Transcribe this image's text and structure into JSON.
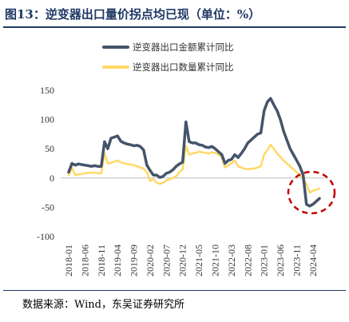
{
  "header": {
    "title": "图13：逆变器出口量价拐点均已现（单位：%）"
  },
  "footer": {
    "source": "数据来源：Wind，东吴证券研究所"
  },
  "chart_data": {
    "type": "line",
    "title": "",
    "xlabel": "",
    "ylabel": "",
    "ylim": [
      -100,
      150
    ],
    "yticks": [
      150,
      100,
      50,
      0,
      -50,
      -100
    ],
    "xtick_labels": [
      "2018-01",
      "2018-06",
      "2018-11",
      "2019-04",
      "2019-09",
      "2020-02",
      "2020-07",
      "2020-12",
      "2021-05",
      "2021-10",
      "2022-03",
      "2022-08",
      "2023-01",
      "2023-06",
      "2023-11",
      "2024-04"
    ],
    "legend_position": "top-center",
    "annotation": "dashed red ellipse around latest values",
    "x": [
      "2018-01",
      "2018-02",
      "2018-03",
      "2018-04",
      "2018-05",
      "2018-06",
      "2018-07",
      "2018-08",
      "2018-09",
      "2018-10",
      "2018-11",
      "2018-12",
      "2019-01",
      "2019-02",
      "2019-03",
      "2019-04",
      "2019-05",
      "2019-06",
      "2019-07",
      "2019-08",
      "2019-09",
      "2019-10",
      "2019-11",
      "2019-12",
      "2020-01",
      "2020-02",
      "2020-03",
      "2020-04",
      "2020-05",
      "2020-06",
      "2020-07",
      "2020-08",
      "2020-09",
      "2020-10",
      "2020-11",
      "2020-12",
      "2021-01",
      "2021-02",
      "2021-03",
      "2021-04",
      "2021-05",
      "2021-06",
      "2021-07",
      "2021-08",
      "2021-09",
      "2021-10",
      "2021-11",
      "2021-12",
      "2022-01",
      "2022-02",
      "2022-03",
      "2022-04",
      "2022-05",
      "2022-06",
      "2022-07",
      "2022-08",
      "2022-09",
      "2022-10",
      "2022-11",
      "2022-12",
      "2023-01",
      "2023-02",
      "2023-03",
      "2023-04",
      "2023-05",
      "2023-06",
      "2023-07",
      "2023-08",
      "2023-09",
      "2023-10",
      "2023-11",
      "2023-12",
      "2024-01",
      "2024-02",
      "2024-03",
      "2024-04",
      "2024-05",
      "2024-06"
    ],
    "series": [
      {
        "name": "逆变器出口金额累计同比",
        "color": "#44546a",
        "values": [
          10,
          25,
          22,
          24,
          23,
          22,
          21,
          20,
          21,
          20,
          20,
          62,
          50,
          68,
          70,
          72,
          63,
          60,
          58,
          57,
          55,
          56,
          54,
          48,
          22,
          13,
          5,
          5,
          1,
          3,
          8,
          10,
          14,
          20,
          24,
          27,
          96,
          62,
          60,
          60,
          57,
          56,
          53,
          52,
          54,
          50,
          45,
          40,
          25,
          30,
          32,
          40,
          35,
          42,
          50,
          60,
          65,
          70,
          75,
          77,
          115,
          130,
          136,
          125,
          115,
          100,
          80,
          65,
          50,
          40,
          30,
          20,
          5,
          -45,
          -48,
          -45,
          -40,
          -35
        ]
      },
      {
        "name": "逆变器出口数量累计同比",
        "color": "#ffd966",
        "values": [
          5,
          18,
          5,
          6,
          7,
          8,
          9,
          9,
          9,
          8,
          8,
          42,
          25,
          26,
          28,
          30,
          27,
          25,
          24,
          23,
          22,
          20,
          18,
          16,
          10,
          -5,
          -2,
          -8,
          -10,
          -8,
          -4,
          -2,
          0,
          3,
          10,
          15,
          55,
          40,
          42,
          43,
          45,
          44,
          43,
          42,
          44,
          43,
          40,
          35,
          18,
          22,
          25,
          30,
          20,
          18,
          16,
          15,
          16,
          16,
          18,
          20,
          40,
          48,
          57,
          50,
          42,
          36,
          30,
          25,
          20,
          15,
          10,
          5,
          -2,
          -10,
          -25,
          -22,
          -20,
          -18
        ]
      }
    ]
  }
}
